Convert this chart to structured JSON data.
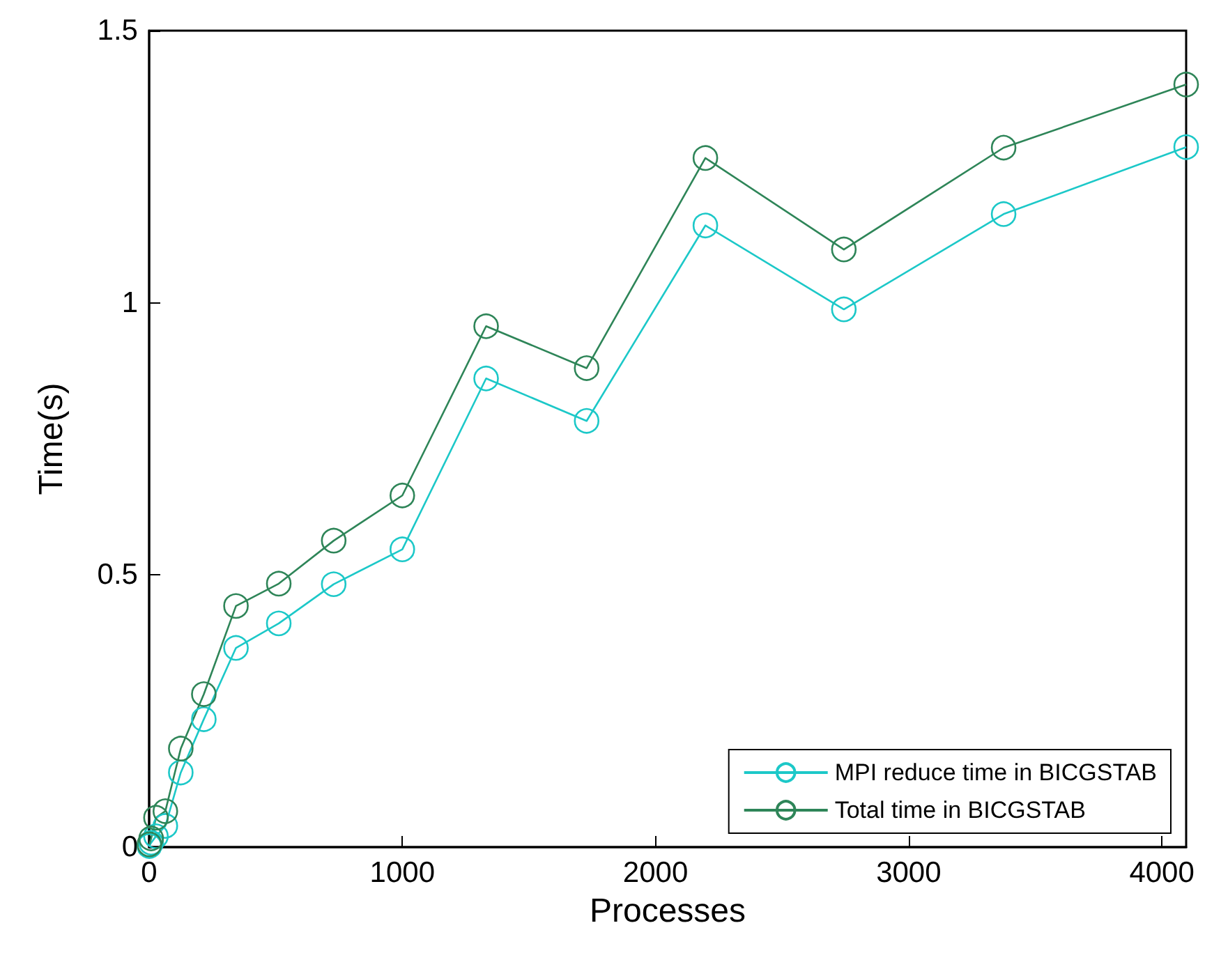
{
  "chart_data": {
    "type": "line",
    "xlabel": "Processes",
    "ylabel": "Time(s)",
    "x": [
      1,
      8,
      27,
      64,
      125,
      216,
      343,
      512,
      729,
      1000,
      1331,
      1728,
      2197,
      2744,
      3375,
      4096
    ],
    "series": [
      {
        "name": "MPI reduce time in BICGSTAB",
        "color": "#1cc8c8",
        "values": [
          0.002,
          0.008,
          0.02,
          0.039,
          0.137,
          0.235,
          0.366,
          0.411,
          0.483,
          0.547,
          0.861,
          0.783,
          1.142,
          0.988,
          1.163,
          1.286
        ]
      },
      {
        "name": "Total time in BICGSTAB",
        "color": "#2e8558",
        "values": [
          0.005,
          0.016,
          0.054,
          0.066,
          0.181,
          0.281,
          0.443,
          0.484,
          0.563,
          0.646,
          0.957,
          0.88,
          1.266,
          1.098,
          1.285,
          1.401
        ]
      }
    ],
    "xlim": [
      0,
      4096
    ],
    "xticks": [
      0,
      1000,
      2000,
      3000,
      4000
    ],
    "ylim": [
      0,
      1.5
    ],
    "yticks": [
      0,
      0.5,
      1,
      1.5
    ],
    "grid": false,
    "legend": "bottom right",
    "marker": "circle",
    "line_style": "solid"
  }
}
